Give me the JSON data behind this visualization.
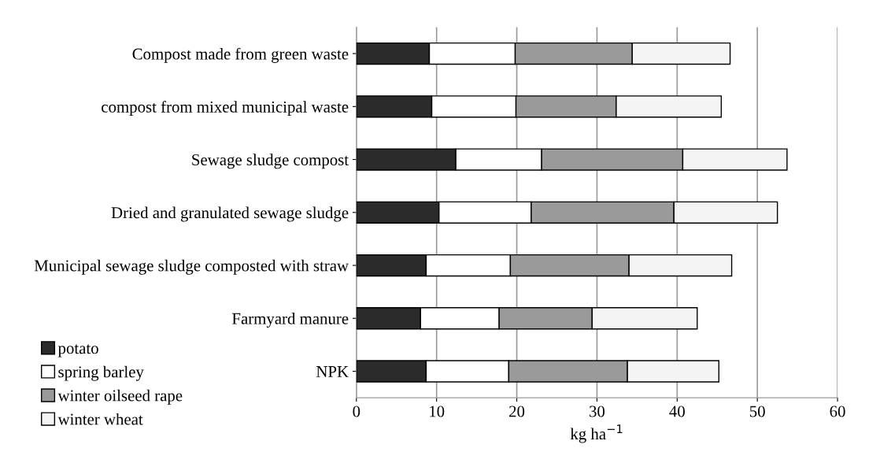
{
  "chart_data": {
    "type": "bar",
    "orientation": "horizontal",
    "stacked": true,
    "categories": [
      "Compost made from green waste",
      "compost from mixed municipal waste",
      "Sewage sludge compost",
      "Dried and granulated sewage sludge",
      "Municipal sewage sludge composted with straw",
      "Farmyard manure",
      "NPK"
    ],
    "series": [
      {
        "name": "potato",
        "color": "#2b2b2b",
        "values": [
          9.1,
          9.4,
          12.4,
          10.3,
          8.7,
          8.0,
          8.7
        ]
      },
      {
        "name": "spring barley",
        "color": "#ffffff",
        "values": [
          10.7,
          10.5,
          10.7,
          11.5,
          10.5,
          9.8,
          10.3
        ]
      },
      {
        "name": "winter oilseed rape",
        "color": "#9a9a9a",
        "values": [
          14.6,
          12.5,
          17.6,
          17.8,
          14.8,
          11.6,
          14.8
        ]
      },
      {
        "name": "winter wheat",
        "color": "#f4f4f4",
        "values": [
          12.2,
          13.1,
          13.0,
          12.9,
          12.8,
          13.1,
          11.4
        ]
      }
    ],
    "xlabel": "kg ha$^{−1}$",
    "xlim": [
      0,
      60
    ],
    "xticks": [
      0,
      10,
      20,
      30,
      40,
      50,
      60
    ],
    "grid": "x",
    "legend": "bottom left"
  }
}
